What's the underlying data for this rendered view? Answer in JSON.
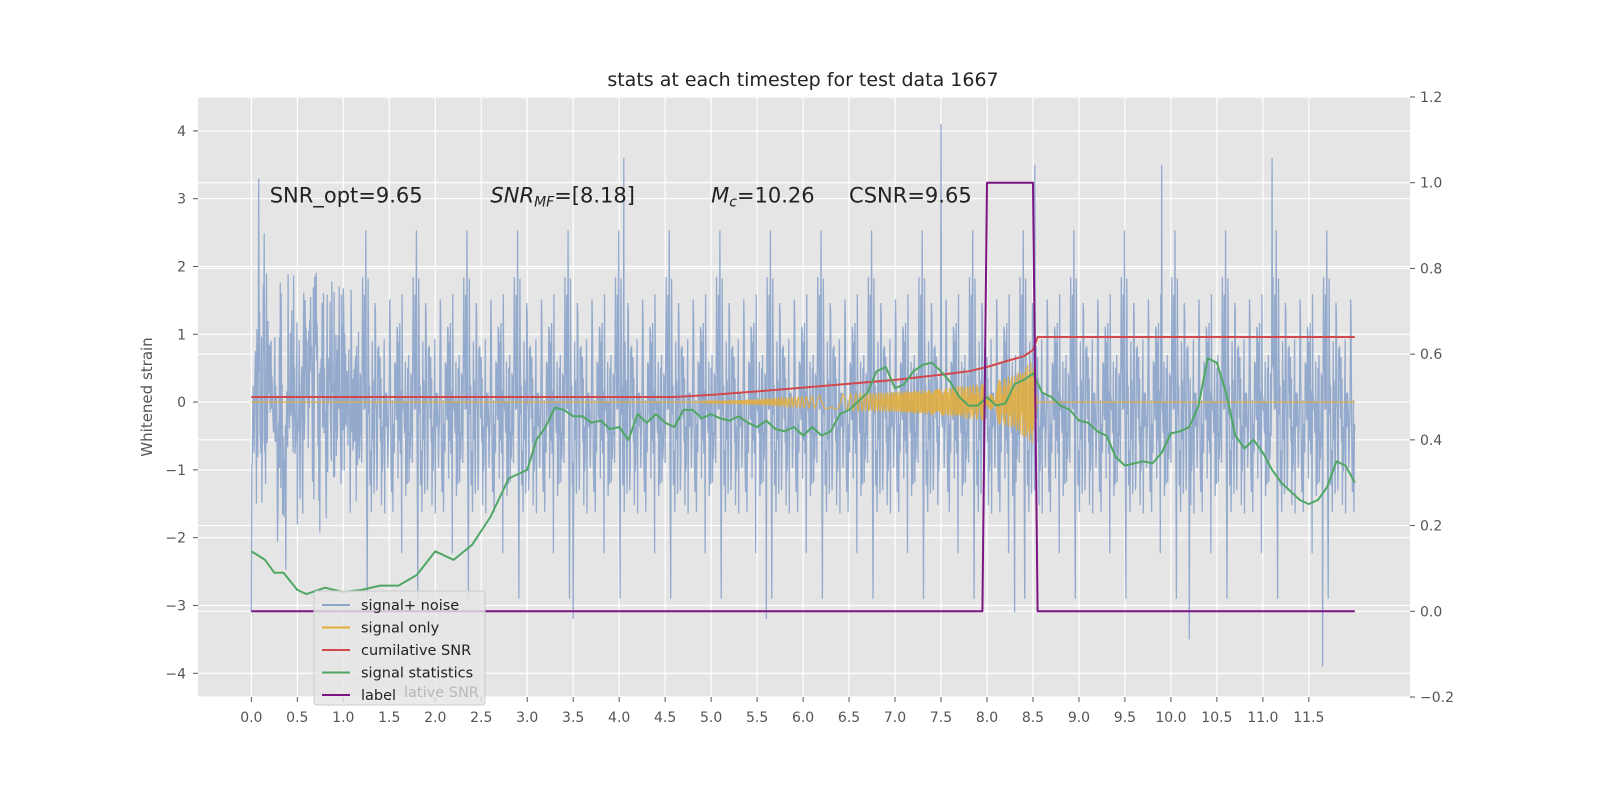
{
  "chart_data": {
    "type": "line",
    "title": "stats at each timestep for test data 1667",
    "ylabel": "Whitened strain",
    "xlim": [
      -0.58,
      12.6
    ],
    "ylim": [
      -4.35,
      4.5
    ],
    "ylim_right": [
      -0.2,
      1.2
    ],
    "xticks": [
      0.0,
      0.5,
      1.0,
      1.5,
      2.0,
      2.5,
      3.0,
      3.5,
      4.0,
      4.5,
      5.0,
      5.5,
      6.0,
      6.5,
      7.0,
      7.5,
      8.0,
      8.5,
      9.0,
      9.5,
      10.0,
      10.5,
      11.0,
      11.5
    ],
    "xtick_labels": [
      "0.0",
      "0.5",
      "1.0",
      "1.5",
      "2.0",
      "2.5",
      "3.0",
      "3.5",
      "4.0",
      "4.5",
      "5.0",
      "5.5",
      "6.0",
      "6.5",
      "7.0",
      "7.5",
      "8.0",
      "8.5",
      "9.0",
      "9.5",
      "10.0",
      "10.5",
      "11.0",
      "11.5"
    ],
    "yticks": [
      -4,
      -3,
      -2,
      -1,
      0,
      1,
      2,
      3,
      4
    ],
    "ytick_labels": [
      "−4",
      "−3",
      "−2",
      "−1",
      "0",
      "1",
      "2",
      "3",
      "4"
    ],
    "yticks_right": [
      -0.2,
      0.0,
      0.2,
      0.4,
      0.6,
      0.8,
      1.0,
      1.2
    ],
    "ytick_right_labels": [
      "−0.2",
      "0.0",
      "0.2",
      "0.4",
      "0.6",
      "0.8",
      "1.0",
      "1.2"
    ],
    "grid": true,
    "legend_position": "lower-left",
    "annotations": [
      {
        "x": 0.2,
        "y": 3.15,
        "text": "SNR_opt=9.65",
        "italic_math": false
      },
      {
        "x": 2.6,
        "y": 3.15,
        "text": "SNR_MF=[8.18]",
        "italic_math": true
      },
      {
        "x": 5.0,
        "y": 3.15,
        "text": "M_c=10.26",
        "italic_math": true
      },
      {
        "x": 6.5,
        "y": 3.15,
        "text": "CSNR=9.65",
        "italic_math": false
      }
    ],
    "series": [
      {
        "name": "signal+ noise",
        "axis": "left",
        "color": "#8fa6cb",
        "style": "dense-noise",
        "x_range": [
          0.0,
          12.0
        ],
        "typical_band": [
          -2.2,
          2.2
        ],
        "notable_peaks": [
          {
            "x": 0.08,
            "y": 3.3
          },
          {
            "x": 4.05,
            "y": 3.6
          },
          {
            "x": 7.5,
            "y": 4.1
          },
          {
            "x": 8.52,
            "y": 3.5
          },
          {
            "x": 9.9,
            "y": 3.5
          },
          {
            "x": 11.1,
            "y": 3.6
          },
          {
            "x": 11.65,
            "y": -3.9
          },
          {
            "x": 10.2,
            "y": -3.5
          },
          {
            "x": 3.5,
            "y": -3.2
          },
          {
            "x": 8.3,
            "y": -3.1
          },
          {
            "x": 5.6,
            "y": -3.2
          },
          {
            "x": 0.0,
            "y": -3.1
          }
        ]
      },
      {
        "name": "signal only",
        "axis": "left",
        "color": "#e5ae38",
        "style": "chirp",
        "x_range": [
          0.0,
          12.0
        ],
        "envelope": [
          [
            4.8,
            0.0
          ],
          [
            5.5,
            0.04
          ],
          [
            6.0,
            0.08
          ],
          [
            6.5,
            0.12
          ],
          [
            7.0,
            0.15
          ],
          [
            7.5,
            0.2
          ],
          [
            8.0,
            0.28
          ],
          [
            8.3,
            0.4
          ],
          [
            8.5,
            0.62
          ],
          [
            8.55,
            0.0
          ]
        ]
      },
      {
        "name": "cumilative SNR",
        "axis": "right",
        "color": "#d1494c",
        "x": [
          0.0,
          4.6,
          5.0,
          5.5,
          6.0,
          6.5,
          7.0,
          7.5,
          7.8,
          8.0,
          8.2,
          8.4,
          8.5,
          8.55,
          8.6,
          12.0
        ],
        "y": [
          0.5,
          0.5,
          0.505,
          0.513,
          0.522,
          0.531,
          0.54,
          0.552,
          0.56,
          0.57,
          0.583,
          0.595,
          0.61,
          0.64,
          0.64,
          0.64
        ]
      },
      {
        "name": "signal statistics",
        "axis": "right",
        "color": "#50a764",
        "x": [
          0.0,
          0.15,
          0.25,
          0.35,
          0.5,
          0.6,
          0.8,
          1.0,
          1.2,
          1.4,
          1.6,
          1.8,
          2.0,
          2.2,
          2.4,
          2.6,
          2.8,
          3.0,
          3.1,
          3.2,
          3.3,
          3.4,
          3.5,
          3.6,
          3.7,
          3.8,
          3.9,
          4.0,
          4.1,
          4.2,
          4.3,
          4.4,
          4.5,
          4.6,
          4.7,
          4.8,
          4.9,
          5.0,
          5.1,
          5.2,
          5.3,
          5.4,
          5.5,
          5.6,
          5.7,
          5.8,
          5.9,
          6.0,
          6.1,
          6.2,
          6.3,
          6.4,
          6.5,
          6.6,
          6.7,
          6.8,
          6.9,
          7.0,
          7.1,
          7.2,
          7.3,
          7.4,
          7.5,
          7.6,
          7.7,
          7.8,
          7.9,
          8.0,
          8.1,
          8.2,
          8.3,
          8.4,
          8.5,
          8.6,
          8.7,
          8.8,
          8.9,
          9.0,
          9.1,
          9.2,
          9.3,
          9.4,
          9.5,
          9.6,
          9.7,
          9.8,
          9.9,
          10.0,
          10.1,
          10.2,
          10.3,
          10.4,
          10.5,
          10.6,
          10.7,
          10.8,
          10.9,
          11.0,
          11.1,
          11.2,
          11.3,
          11.4,
          11.5,
          11.6,
          11.7,
          11.8,
          11.9,
          12.0
        ],
        "y": [
          0.14,
          0.12,
          0.09,
          0.09,
          0.05,
          0.04,
          0.055,
          0.045,
          0.05,
          0.06,
          0.06,
          0.085,
          0.14,
          0.12,
          0.155,
          0.22,
          0.31,
          0.33,
          0.4,
          0.43,
          0.475,
          0.47,
          0.455,
          0.455,
          0.44,
          0.445,
          0.425,
          0.43,
          0.4,
          0.46,
          0.44,
          0.46,
          0.44,
          0.43,
          0.47,
          0.47,
          0.45,
          0.46,
          0.45,
          0.445,
          0.455,
          0.44,
          0.43,
          0.445,
          0.425,
          0.42,
          0.43,
          0.41,
          0.43,
          0.41,
          0.42,
          0.46,
          0.47,
          0.49,
          0.51,
          0.56,
          0.57,
          0.52,
          0.53,
          0.56,
          0.575,
          0.58,
          0.56,
          0.535,
          0.5,
          0.48,
          0.48,
          0.5,
          0.48,
          0.485,
          0.53,
          0.54,
          0.555,
          0.51,
          0.5,
          0.48,
          0.47,
          0.445,
          0.44,
          0.42,
          0.41,
          0.36,
          0.34,
          0.345,
          0.35,
          0.345,
          0.37,
          0.415,
          0.42,
          0.43,
          0.48,
          0.59,
          0.58,
          0.51,
          0.41,
          0.38,
          0.4,
          0.37,
          0.33,
          0.3,
          0.28,
          0.26,
          0.25,
          0.26,
          0.29,
          0.35,
          0.34,
          0.3
        ]
      },
      {
        "name": "label",
        "axis": "right",
        "color": "#7b1583",
        "x": [
          0.0,
          7.95,
          8.0,
          8.5,
          8.55,
          12.0
        ],
        "y": [
          0.0,
          0.0,
          1.0,
          1.0,
          0.0,
          0.0
        ]
      }
    ],
    "legend": [
      {
        "name": "signal+ noise",
        "color": "#8fa6cb"
      },
      {
        "name": "signal only",
        "color": "#e5ae38"
      },
      {
        "name": "cumilative SNR",
        "color": "#d1494c"
      },
      {
        "name": "signal statistics",
        "color": "#50a764"
      },
      {
        "name": "label",
        "color": "#7b1583"
      }
    ],
    "legend_ghost_text": "lative SNR"
  }
}
